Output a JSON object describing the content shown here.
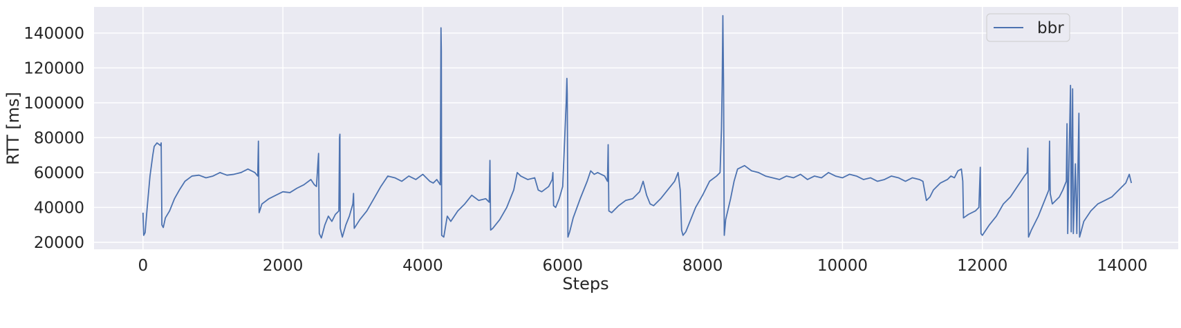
{
  "chart_data": {
    "type": "line",
    "title": "",
    "xlabel": "Steps",
    "ylabel": "RTT [ms]",
    "xlim": [
      -700,
      14800
    ],
    "ylim": [
      16000,
      155000
    ],
    "xticks": [
      0,
      2000,
      4000,
      6000,
      8000,
      10000,
      12000,
      14000
    ],
    "yticks": [
      20000,
      40000,
      60000,
      80000,
      100000,
      120000,
      140000
    ],
    "grid": true,
    "legend_position": "top-right",
    "series": [
      {
        "name": "bbr",
        "color": "#4c72b0",
        "points": [
          [
            0,
            37000
          ],
          [
            10,
            24000
          ],
          [
            30,
            25500
          ],
          [
            60,
            40000
          ],
          [
            100,
            58000
          ],
          [
            140,
            70000
          ],
          [
            160,
            75000
          ],
          [
            200,
            77000
          ],
          [
            250,
            75500
          ],
          [
            260,
            77000
          ],
          [
            270,
            30000
          ],
          [
            290,
            28500
          ],
          [
            320,
            34000
          ],
          [
            380,
            38000
          ],
          [
            450,
            45000
          ],
          [
            520,
            50000
          ],
          [
            600,
            55000
          ],
          [
            700,
            58000
          ],
          [
            800,
            58500
          ],
          [
            900,
            57000
          ],
          [
            1000,
            58000
          ],
          [
            1100,
            60000
          ],
          [
            1200,
            58500
          ],
          [
            1300,
            59000
          ],
          [
            1400,
            60000
          ],
          [
            1500,
            62000
          ],
          [
            1600,
            60000
          ],
          [
            1640,
            58000
          ],
          [
            1650,
            78000
          ],
          [
            1660,
            37000
          ],
          [
            1700,
            42000
          ],
          [
            1800,
            45000
          ],
          [
            1900,
            47000
          ],
          [
            2000,
            49000
          ],
          [
            2100,
            48500
          ],
          [
            2200,
            51000
          ],
          [
            2300,
            53000
          ],
          [
            2400,
            56000
          ],
          [
            2450,
            53000
          ],
          [
            2480,
            52000
          ],
          [
            2500,
            65000
          ],
          [
            2510,
            71000
          ],
          [
            2520,
            25000
          ],
          [
            2550,
            22500
          ],
          [
            2600,
            30000
          ],
          [
            2650,
            35000
          ],
          [
            2700,
            32000
          ],
          [
            2750,
            36000
          ],
          [
            2800,
            38000
          ],
          [
            2810,
            80000
          ],
          [
            2815,
            82000
          ],
          [
            2820,
            28000
          ],
          [
            2850,
            23000
          ],
          [
            2900,
            30000
          ],
          [
            2950,
            35000
          ],
          [
            3000,
            42000
          ],
          [
            3010,
            48000
          ],
          [
            3020,
            28000
          ],
          [
            3100,
            33000
          ],
          [
            3200,
            38000
          ],
          [
            3300,
            45000
          ],
          [
            3400,
            52000
          ],
          [
            3500,
            58000
          ],
          [
            3600,
            57000
          ],
          [
            3700,
            55000
          ],
          [
            3800,
            58000
          ],
          [
            3900,
            56000
          ],
          [
            4000,
            59000
          ],
          [
            4100,
            55000
          ],
          [
            4150,
            54000
          ],
          [
            4200,
            56000
          ],
          [
            4250,
            53000
          ],
          [
            4260,
            143000
          ],
          [
            4265,
            130000
          ],
          [
            4270,
            24000
          ],
          [
            4300,
            23000
          ],
          [
            4350,
            35000
          ],
          [
            4400,
            32000
          ],
          [
            4500,
            38000
          ],
          [
            4600,
            42000
          ],
          [
            4700,
            47000
          ],
          [
            4800,
            44000
          ],
          [
            4900,
            45000
          ],
          [
            4950,
            43000
          ],
          [
            4960,
            67000
          ],
          [
            4970,
            27000
          ],
          [
            5000,
            28000
          ],
          [
            5100,
            33000
          ],
          [
            5200,
            40000
          ],
          [
            5300,
            50000
          ],
          [
            5350,
            60000
          ],
          [
            5400,
            58000
          ],
          [
            5500,
            56000
          ],
          [
            5600,
            57000
          ],
          [
            5650,
            50000
          ],
          [
            5700,
            49000
          ],
          [
            5800,
            52000
          ],
          [
            5850,
            56000
          ],
          [
            5860,
            60000
          ],
          [
            5870,
            41000
          ],
          [
            5900,
            40000
          ],
          [
            5950,
            45000
          ],
          [
            6000,
            52000
          ],
          [
            6050,
            100000
          ],
          [
            6060,
            114000
          ],
          [
            6065,
            105000
          ],
          [
            6075,
            23000
          ],
          [
            6100,
            26000
          ],
          [
            6150,
            34000
          ],
          [
            6250,
            45000
          ],
          [
            6350,
            55000
          ],
          [
            6400,
            61000
          ],
          [
            6450,
            59000
          ],
          [
            6500,
            60000
          ],
          [
            6600,
            58000
          ],
          [
            6640,
            55000
          ],
          [
            6650,
            76000
          ],
          [
            6660,
            38000
          ],
          [
            6700,
            37000
          ],
          [
            6800,
            41000
          ],
          [
            6900,
            44000
          ],
          [
            7000,
            45000
          ],
          [
            7100,
            49000
          ],
          [
            7150,
            55000
          ],
          [
            7200,
            47000
          ],
          [
            7250,
            42000
          ],
          [
            7300,
            41000
          ],
          [
            7400,
            45000
          ],
          [
            7500,
            50000
          ],
          [
            7600,
            55000
          ],
          [
            7650,
            60000
          ],
          [
            7680,
            50000
          ],
          [
            7700,
            27000
          ],
          [
            7720,
            24000
          ],
          [
            7760,
            26000
          ],
          [
            7800,
            30000
          ],
          [
            7900,
            40000
          ],
          [
            8000,
            47000
          ],
          [
            8100,
            55000
          ],
          [
            8200,
            58000
          ],
          [
            8250,
            60000
          ],
          [
            8270,
            85000
          ],
          [
            8280,
            110000
          ],
          [
            8290,
            150000
          ],
          [
            8300,
            110000
          ],
          [
            8310,
            24000
          ],
          [
            8330,
            33000
          ],
          [
            8400,
            45000
          ],
          [
            8450,
            55000
          ],
          [
            8500,
            62000
          ],
          [
            8600,
            64000
          ],
          [
            8700,
            61000
          ],
          [
            8800,
            60000
          ],
          [
            8900,
            58000
          ],
          [
            9000,
            57000
          ],
          [
            9100,
            56000
          ],
          [
            9200,
            58000
          ],
          [
            9300,
            57000
          ],
          [
            9400,
            59000
          ],
          [
            9500,
            56000
          ],
          [
            9600,
            58000
          ],
          [
            9700,
            57000
          ],
          [
            9800,
            60000
          ],
          [
            9900,
            58000
          ],
          [
            10000,
            57000
          ],
          [
            10100,
            59000
          ],
          [
            10200,
            58000
          ],
          [
            10300,
            56000
          ],
          [
            10400,
            57000
          ],
          [
            10500,
            55000
          ],
          [
            10600,
            56000
          ],
          [
            10700,
            58000
          ],
          [
            10800,
            57000
          ],
          [
            10900,
            55000
          ],
          [
            11000,
            57000
          ],
          [
            11100,
            56000
          ],
          [
            11150,
            55000
          ],
          [
            11200,
            44000
          ],
          [
            11250,
            46000
          ],
          [
            11300,
            50000
          ],
          [
            11400,
            54000
          ],
          [
            11500,
            56000
          ],
          [
            11550,
            58000
          ],
          [
            11600,
            57000
          ],
          [
            11650,
            61000
          ],
          [
            11700,
            62000
          ],
          [
            11720,
            55000
          ],
          [
            11730,
            34000
          ],
          [
            11800,
            36000
          ],
          [
            11900,
            38000
          ],
          [
            11950,
            40000
          ],
          [
            11970,
            63000
          ],
          [
            11980,
            25000
          ],
          [
            12000,
            24000
          ],
          [
            12100,
            30000
          ],
          [
            12200,
            35000
          ],
          [
            12300,
            42000
          ],
          [
            12400,
            46000
          ],
          [
            12500,
            52000
          ],
          [
            12600,
            58000
          ],
          [
            12640,
            60000
          ],
          [
            12650,
            74000
          ],
          [
            12660,
            23000
          ],
          [
            12700,
            27000
          ],
          [
            12800,
            35000
          ],
          [
            12900,
            45000
          ],
          [
            12950,
            50000
          ],
          [
            12960,
            78000
          ],
          [
            12970,
            48000
          ],
          [
            13000,
            42000
          ],
          [
            13100,
            46000
          ],
          [
            13150,
            50000
          ],
          [
            13200,
            55000
          ],
          [
            13210,
            88000
          ],
          [
            13220,
            25000
          ],
          [
            13240,
            70000
          ],
          [
            13260,
            110000
          ],
          [
            13270,
            26000
          ],
          [
            13290,
            108000
          ],
          [
            13300,
            25000
          ],
          [
            13330,
            65000
          ],
          [
            13350,
            25000
          ],
          [
            13380,
            94000
          ],
          [
            13390,
            23000
          ],
          [
            13450,
            32000
          ],
          [
            13550,
            38000
          ],
          [
            13650,
            42000
          ],
          [
            13750,
            44000
          ],
          [
            13850,
            46000
          ],
          [
            13950,
            50000
          ],
          [
            14050,
            54000
          ],
          [
            14100,
            59000
          ],
          [
            14130,
            54000
          ]
        ]
      }
    ]
  }
}
